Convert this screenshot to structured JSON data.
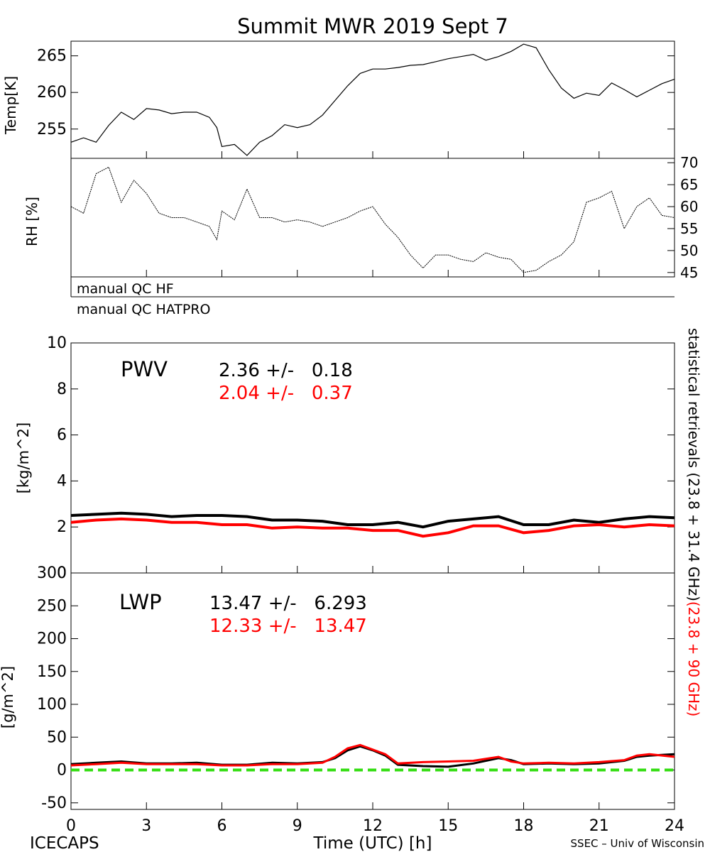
{
  "title": "Summit MWR 2019 Sept  7",
  "footer": {
    "left": "ICECAPS",
    "center": "Time (UTC) [h]",
    "right": "SSEC – Univ of Wisconsin"
  },
  "colors": {
    "black_series": "#000000",
    "red_series": "#ff0000",
    "zero_line": "#33dd11"
  },
  "side_label": {
    "black": "statistical retrievals (23.8 + 31.4 GHz)",
    "red": "(23.8 + 90 GHz)"
  },
  "qc_flags": [
    "manual QC HF",
    "manual QC HATPRO"
  ],
  "panels": {
    "temp": {
      "ylabel": "Temp[K]",
      "ticks": [
        "255",
        "260",
        "265"
      ]
    },
    "rh": {
      "ylabel": "RH [%]",
      "ticks": [
        "45",
        "50",
        "55",
        "60",
        "65",
        "70"
      ]
    },
    "pwv": {
      "label": "PWV",
      "ylabel": "[kg/m^2]",
      "stat_black": "2.36 +/-   0.18",
      "stat_red": "2.04 +/-   0.37",
      "ticks": [
        "0",
        "2",
        "4",
        "6",
        "8",
        "10"
      ]
    },
    "lwp": {
      "label": "LWP",
      "ylabel": "[g/m^2]",
      "stat_black": "13.47 +/-   6.293",
      "stat_red": "12.33 +/-   13.47",
      "ticks": [
        "-50",
        "0",
        "50",
        "100",
        "150",
        "200",
        "250",
        "300"
      ]
    }
  },
  "xticks": [
    "0",
    "3",
    "6",
    "9",
    "12",
    "15",
    "18",
    "21",
    "24"
  ],
  "chart_data": [
    {
      "type": "line",
      "ylabel": "Temp[K]",
      "xlim": [
        0,
        24
      ],
      "ylim": [
        251,
        267
      ],
      "x": [
        0,
        0.5,
        1,
        1.5,
        2,
        2.5,
        3,
        3.5,
        4,
        4.5,
        5,
        5.5,
        5.8,
        6,
        6.5,
        7,
        7.5,
        8,
        8.5,
        9,
        9.5,
        10,
        10.5,
        11,
        11.5,
        12,
        12.5,
        13,
        13.5,
        14,
        14.5,
        15,
        15.5,
        16,
        16.5,
        17,
        17.5,
        18,
        18.5,
        19,
        19.5,
        20,
        20.5,
        21,
        21.5,
        22,
        22.5,
        23,
        23.5,
        24
      ],
      "series": [
        {
          "values": [
            253.2,
            253.8,
            253.2,
            255.5,
            257.3,
            256.3,
            257.8,
            257.6,
            257.1,
            257.3,
            257.3,
            256.6,
            255.2,
            252.6,
            252.9,
            251.4,
            253.2,
            254.1,
            255.6,
            255.2,
            255.6,
            256.9,
            258.9,
            260.9,
            262.6,
            263.2,
            263.2,
            263.4,
            263.7,
            263.8,
            264.2,
            264.6,
            264.9,
            265.2,
            264.4,
            264.9,
            265.6,
            266.6,
            266.1,
            263.1,
            260.6,
            259.2,
            259.9,
            259.6,
            261.3,
            260.4,
            259.4,
            260.3,
            261.2,
            261.8
          ]
        }
      ]
    },
    {
      "type": "line",
      "ylabel": "RH [%]",
      "xlim": [
        0,
        24
      ],
      "ylim": [
        44,
        71
      ],
      "x": [
        0,
        0.5,
        1,
        1.5,
        2,
        2.5,
        3,
        3.5,
        4,
        4.5,
        5,
        5.5,
        5.8,
        6,
        6.5,
        7,
        7.5,
        8,
        8.5,
        9,
        9.5,
        10,
        10.5,
        11,
        11.5,
        12,
        12.5,
        13,
        13.5,
        14,
        14.5,
        15,
        15.5,
        16,
        16.5,
        17,
        17.5,
        18,
        18.5,
        19,
        19.5,
        20,
        20.5,
        21,
        21.5,
        22,
        22.5,
        23,
        23.5,
        24
      ],
      "series": [
        {
          "values": [
            60,
            58.5,
            67.5,
            69,
            61,
            66,
            63,
            58.5,
            57.5,
            57.5,
            56.5,
            55.5,
            52.5,
            59,
            57,
            64,
            57.5,
            57.5,
            56.5,
            57,
            56.5,
            55.5,
            56.5,
            57.5,
            59,
            60,
            56,
            53,
            49,
            46,
            49,
            49,
            48,
            47.5,
            49.5,
            48.5,
            48,
            45,
            45.5,
            47.5,
            49,
            52,
            61,
            62,
            63.5,
            55,
            60,
            62,
            58,
            57.5
          ]
        }
      ]
    },
    {
      "type": "line",
      "ylabel": "[kg/m^2]",
      "xlim": [
        0,
        24
      ],
      "ylim": [
        0,
        10
      ],
      "x": [
        0,
        1,
        2,
        3,
        4,
        5,
        6,
        7,
        8,
        9,
        10,
        11,
        12,
        13,
        14,
        15,
        16,
        17,
        18,
        19,
        20,
        21,
        22,
        23,
        24
      ],
      "series": [
        {
          "values": [
            2.5,
            2.55,
            2.6,
            2.55,
            2.45,
            2.5,
            2.5,
            2.45,
            2.3,
            2.3,
            2.25,
            2.1,
            2.1,
            2.2,
            2.0,
            2.25,
            2.35,
            2.45,
            2.1,
            2.1,
            2.3,
            2.2,
            2.35,
            2.45,
            2.4
          ]
        },
        {
          "values": [
            2.2,
            2.3,
            2.35,
            2.3,
            2.2,
            2.2,
            2.1,
            2.1,
            1.95,
            2.0,
            1.95,
            1.95,
            1.85,
            1.85,
            1.6,
            1.75,
            2.05,
            2.05,
            1.75,
            1.85,
            2.05,
            2.1,
            2.0,
            2.1,
            2.05
          ]
        }
      ]
    },
    {
      "type": "line",
      "ylabel": "[g/m^2]",
      "xlim": [
        0,
        24
      ],
      "ylim": [
        -60,
        300
      ],
      "x": [
        0,
        1,
        2,
        3,
        4,
        5,
        6,
        7,
        8,
        9,
        10,
        10.5,
        11,
        11.5,
        12,
        12.5,
        13,
        14,
        15,
        16,
        17,
        17.5,
        18,
        19,
        20,
        21,
        22,
        22.5,
        23,
        24
      ],
      "series": [
        {
          "values": [
            9,
            11,
            13,
            10,
            10,
            11,
            8,
            8,
            11,
            10,
            12,
            18,
            30,
            36,
            30,
            22,
            8,
            6,
            5,
            10,
            18,
            15,
            9,
            10,
            9,
            10,
            14,
            20,
            22,
            24
          ]
        },
        {
          "values": [
            7,
            9,
            11,
            9,
            9,
            9,
            7,
            7,
            9,
            9,
            11,
            20,
            33,
            38,
            31,
            24,
            10,
            12,
            13,
            14,
            20,
            13,
            10,
            11,
            10,
            12,
            15,
            22,
            24,
            20
          ]
        }
      ]
    }
  ]
}
